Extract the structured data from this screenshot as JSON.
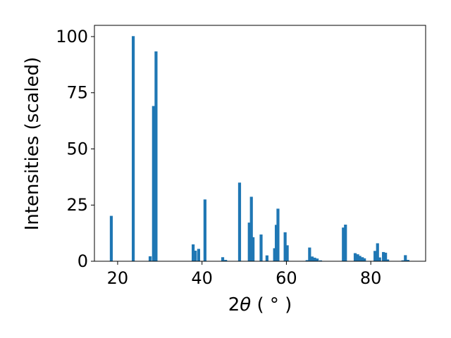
{
  "chart_data": {
    "type": "bar",
    "title": "",
    "xlabel": "2θ (°)",
    "xlabel_parts": {
      "pre": "2",
      "theta": "θ",
      "post": " ( ° )"
    },
    "ylabel": "Intensities (scaled)",
    "xlim": [
      14.5,
      93.0
    ],
    "ylim": [
      0,
      105
    ],
    "xticks": [
      20,
      40,
      60,
      80
    ],
    "yticks": [
      0,
      25,
      50,
      75,
      100
    ],
    "bar_width": 0.7,
    "grid": false,
    "legend": "none",
    "color": "#1f77b4",
    "x": [
      18.5,
      23.7,
      27.7,
      28.5,
      29.1,
      37.9,
      38.4,
      39.2,
      40.7,
      44.9,
      45.6,
      48.9,
      51.2,
      51.7,
      52.1,
      54.0,
      55.4,
      57.2,
      57.6,
      58.0,
      59.7,
      60.2,
      64.9,
      65.5,
      66.1,
      66.7,
      67.3,
      68.1,
      73.5,
      74.0,
      76.3,
      76.9,
      77.4,
      78.0,
      78.5,
      81.0,
      81.6,
      82.1,
      83.0,
      83.5,
      84.0,
      87.6,
      88.2,
      88.8
    ],
    "values": [
      20.2,
      100.2,
      2.2,
      69.1,
      93.4,
      7.5,
      4.7,
      5.5,
      27.5,
      1.8,
      0.6,
      35.0,
      17.2,
      28.7,
      10.7,
      11.9,
      2.6,
      5.8,
      16.2,
      23.4,
      12.9,
      7.1,
      0.5,
      6.1,
      2.1,
      1.6,
      1.2,
      0.4,
      15.0,
      16.3,
      3.6,
      3.1,
      2.4,
      1.8,
      1.3,
      4.6,
      8.0,
      1.7,
      4.1,
      3.8,
      0.8,
      0.4,
      2.7,
      0.6
    ]
  }
}
